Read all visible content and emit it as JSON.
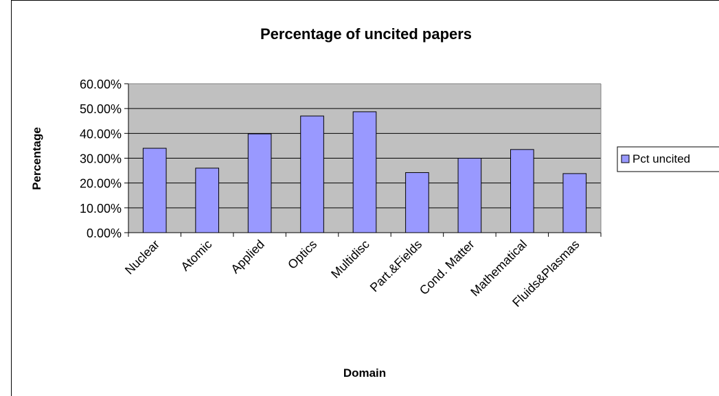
{
  "chart_data": {
    "type": "bar",
    "title": "Percentage of uncited papers",
    "xlabel": "Domain",
    "ylabel": "Percentage",
    "categories": [
      "Nuclear",
      "Atomic",
      "Applied",
      "Optics",
      "Multidisc",
      "Part.&Fields",
      "Cond. Matter",
      "Mathematical",
      "Fluids&Plasmas"
    ],
    "series": [
      {
        "name": "Pct uncited",
        "values": [
          34.0,
          26.0,
          39.8,
          47.0,
          48.7,
          24.2,
          30.0,
          33.5,
          23.8
        ]
      }
    ],
    "ylim": [
      0,
      60
    ],
    "yticks": [
      0,
      10,
      20,
      30,
      40,
      50,
      60
    ],
    "ytick_labels": [
      "0.00%",
      "10.00%",
      "20.00%",
      "30.00%",
      "40.00%",
      "50.00%",
      "60.00%"
    ],
    "grid": true,
    "legend": "right",
    "colors": {
      "bar": "#9999FF",
      "plot_bg": "#C0C0C0",
      "grid": "#000000"
    }
  }
}
